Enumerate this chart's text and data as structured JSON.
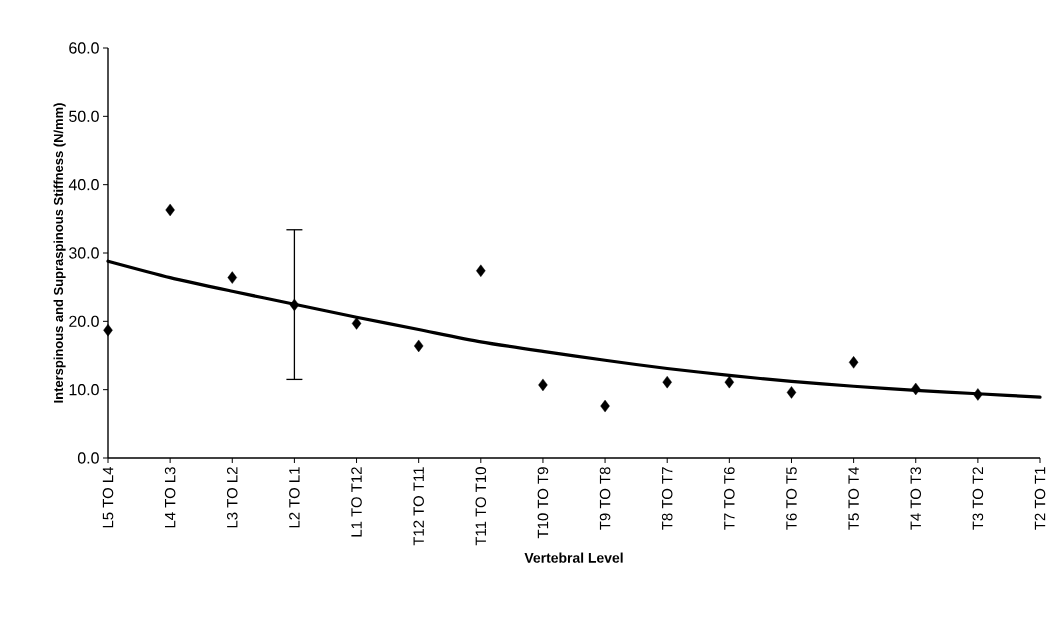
{
  "chart_data": {
    "type": "scatter",
    "xlabel": "Vertebral Level",
    "ylabel": "Interspinous and Supraspinous Stiffness (N/mm)",
    "categories": [
      "L5 TO L4",
      "L4 TO L3",
      "L3 TO L2",
      "L2 TO L1",
      "L1 TO T12",
      "T12 TO T11",
      "T11 TO T10",
      "T10 TO T9",
      "T9 TO T8",
      "T8 TO T7",
      "T7 TO T6",
      "T6 TO T5",
      "T5 TO T4",
      "T4 TO T3",
      "T3 TO T2",
      "T2 TO T1"
    ],
    "series": [
      {
        "color": "#000000",
        "marker": "diamond",
        "values": [
          18.7,
          36.3,
          26.4,
          22.4,
          19.7,
          16.4,
          27.4,
          10.7,
          7.6,
          11.1,
          11.1,
          9.6,
          14.0,
          10.1,
          9.3,
          null
        ],
        "errors": [
          null,
          null,
          null,
          [
            11.5,
            33.4
          ],
          null,
          null,
          null,
          null,
          null,
          null,
          null,
          null,
          null,
          null,
          null,
          null
        ]
      },
      {
        "type": "line",
        "color": "#000000",
        "marker": "none",
        "line_style": "solid",
        "values": [
          28.8,
          26.4,
          24.4,
          22.5,
          20.6,
          18.8,
          17.0,
          15.6,
          14.3,
          13.1,
          12.1,
          11.2,
          10.5,
          9.9,
          9.4,
          8.9
        ]
      }
    ],
    "ylim": [
      0,
      60
    ],
    "yticks": [
      {
        "value": 0,
        "label": "0.0"
      },
      {
        "value": 10,
        "label": "10.0"
      },
      {
        "value": 20,
        "label": "20.0"
      },
      {
        "value": 30,
        "label": "30.0"
      },
      {
        "value": 40,
        "label": "40.0"
      },
      {
        "value": 50,
        "label": "50.0"
      },
      {
        "value": 60,
        "label": "60.0"
      }
    ],
    "grid": false
  }
}
